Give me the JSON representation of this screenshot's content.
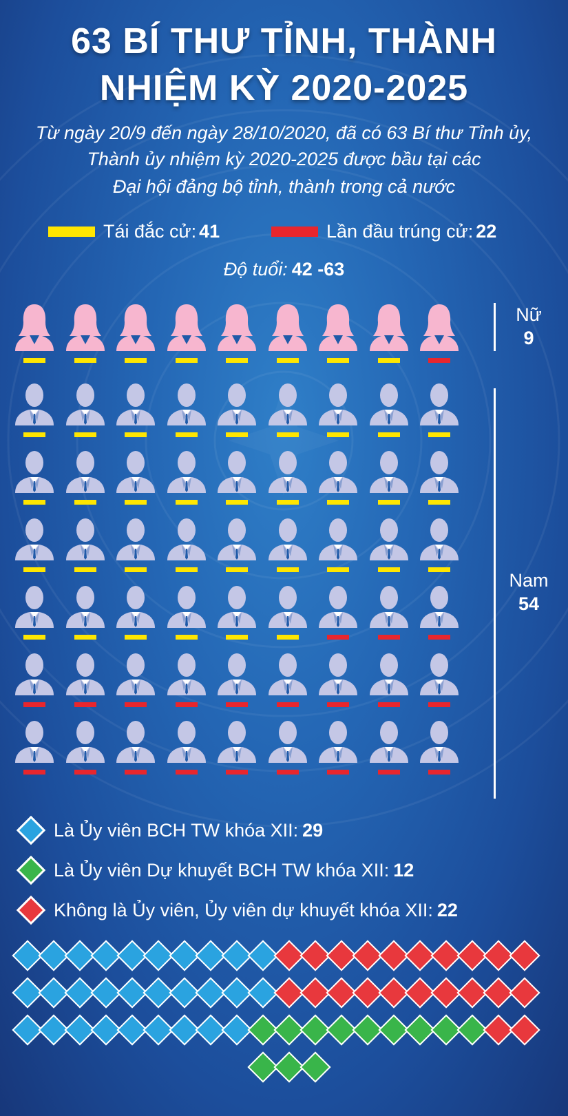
{
  "title": {
    "line1": "63 BÍ THƯ TỈNH, THÀNH",
    "line2": "NHIỆM KỲ 2020-2025"
  },
  "subtitle": {
    "line1": "Từ ngày 20/9 đến ngày 28/10/2020, đã có 63 Bí thư Tỉnh ủy,",
    "line2": "Thành ủy nhiệm kỳ 2020-2025 được bầu tại các",
    "line3": "Đại hội đảng bộ tỉnh, thành trong cả nước"
  },
  "legend": {
    "reelected": {
      "label": "Tái đắc cử:",
      "value": "41",
      "color": "#ffe600"
    },
    "first_time": {
      "label": "Lần đầu trúng cử:",
      "value": "22",
      "color": "#e8262d"
    }
  },
  "age": {
    "label": "Độ tuổi:",
    "value": "42 -63"
  },
  "groups": {
    "female": {
      "label": "Nữ",
      "value": "9",
      "count": 9,
      "reelected": 8,
      "first_time": 1,
      "icon": "female-person-icon",
      "color": "#f7b6cf"
    },
    "male": {
      "label": "Nam",
      "value": "54",
      "count": 54,
      "reelected": 33,
      "first_time": 21,
      "icon": "male-person-icon",
      "color": "#c4c7e6"
    }
  },
  "categories": [
    {
      "label": "Là Ủy viên BCH TW khóa XII:",
      "value": "29",
      "count": 29,
      "color": "#2aa3e0"
    },
    {
      "label": "Là Ủy viên Dự khuyết BCH TW khóa XII:",
      "value": "12",
      "count": 12,
      "color": "#39b54a"
    },
    {
      "label": "Không là Ủy viên, Ủy viên dự khuyết khóa XII:",
      "value": "22",
      "count": 22,
      "color": "#e8383d"
    }
  ],
  "colors": {
    "background": "#2466b4",
    "title": "#ffffff"
  }
}
